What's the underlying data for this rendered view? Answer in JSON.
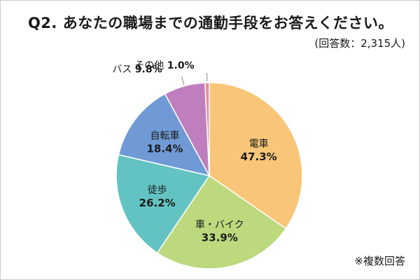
{
  "title": "Q2. あなたの職場までの通勤手段をお答えください。",
  "respondents": "(回答数：2,315人)",
  "footnote": "※複数回答",
  "chart_data": {
    "type": "pie",
    "slices": [
      {
        "label": "電車",
        "value": 47.3,
        "value_label": "47.3%",
        "color": "#f9c679",
        "label_style": "inside"
      },
      {
        "label": "車・バイク",
        "value": 33.9,
        "value_label": "33.9%",
        "color": "#bcd97e",
        "label_style": "inside"
      },
      {
        "label": "徒歩",
        "value": 26.2,
        "value_label": "26.2%",
        "color": "#63c3c2",
        "label_style": "inside"
      },
      {
        "label": "自転車",
        "value": 18.4,
        "value_label": "18.4%",
        "color": "#6f9ad6",
        "label_style": "inside"
      },
      {
        "label": "バス",
        "value": 9.8,
        "value_label": "9.8%",
        "color": "#bf7fbf",
        "label_style": "outside"
      },
      {
        "label": "その他",
        "value": 1.0,
        "value_label": "1.0%",
        "color": "#f08a93",
        "label_style": "outside"
      }
    ],
    "start": "12 o'clock",
    "direction": "clockwise",
    "legend": "none"
  }
}
